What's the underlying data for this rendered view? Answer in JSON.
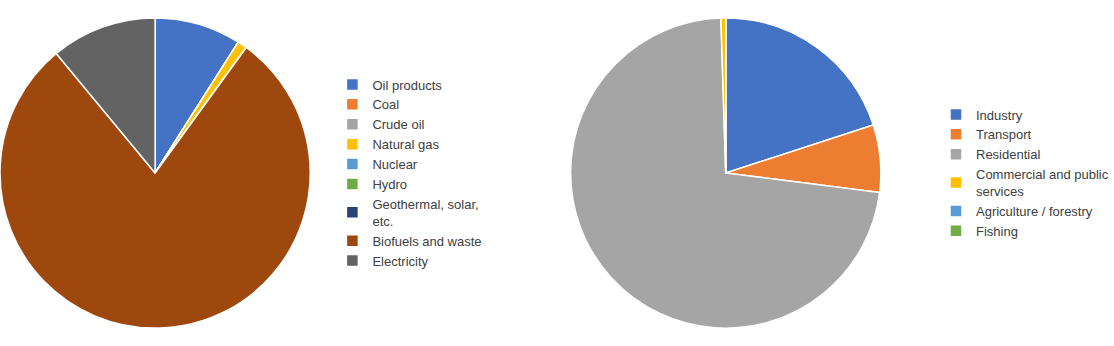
{
  "chart_data": [
    {
      "type": "pie",
      "categories": [
        "Oil products",
        "Coal",
        "Crude oil",
        "Natural gas",
        "Nuclear",
        "Hydro",
        "Geothermal, solar, etc.",
        "Biofuels and waste",
        "Electricity"
      ],
      "values": [
        9,
        0,
        0,
        1,
        0,
        0,
        0,
        79,
        11
      ],
      "colors": [
        "#4472c4",
        "#ed7d31",
        "#a5a5a5",
        "#ffc000",
        "#5b9bd5",
        "#70ad47",
        "#264478",
        "#9e480e",
        "#636363"
      ],
      "legend": "right"
    },
    {
      "type": "pie",
      "categories": [
        "Industry",
        "Transport",
        "Residential",
        "Commercial and public services",
        "Agriculture / forestry",
        "Fishing"
      ],
      "values": [
        20,
        7,
        72.5,
        0.5,
        0,
        0
      ],
      "colors": [
        "#4472c4",
        "#ed7d31",
        "#a5a5a5",
        "#ffc000",
        "#5b9bd5",
        "#70ad47"
      ],
      "legend": "right"
    }
  ]
}
